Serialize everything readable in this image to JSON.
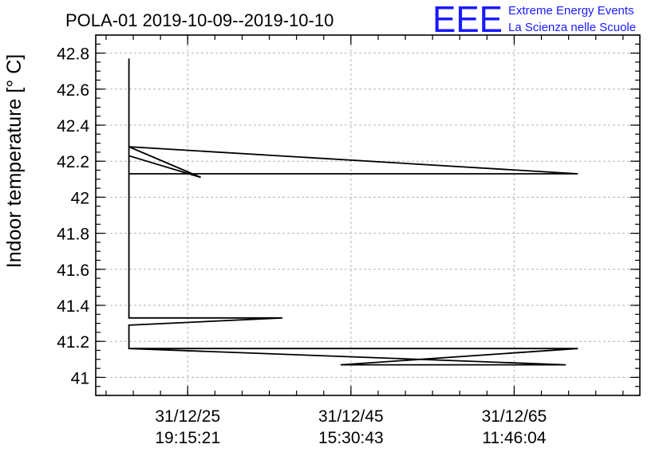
{
  "title": "POLA-01 2019-10-09--2019-10-10",
  "logo": {
    "big": "EEE",
    "line1": "Extreme Energy Events",
    "line2": "La Scienza nelle Scuole",
    "color": "#1a1aff"
  },
  "chart_data": {
    "type": "line",
    "title": "POLA-01 2019-10-09--2019-10-10",
    "xlabel": "",
    "ylabel": "Indoor temperature [° C]",
    "ylim": [
      40.9,
      42.9
    ],
    "yticks": [
      41,
      41.2,
      41.4,
      41.6,
      41.8,
      42,
      42.2,
      42.4,
      42.6,
      42.8
    ],
    "ytick_labels": [
      "41",
      "41.2",
      "41.4",
      "41.6",
      "41.8",
      "42",
      "42.2",
      "42.4",
      "42.6",
      "42.8"
    ],
    "xlim": [
      0,
      100
    ],
    "xticks": [
      {
        "x": 16.9,
        "line1": "31/12/25",
        "line2": "19:15:21"
      },
      {
        "x": 46.9,
        "line1": "31/12/45",
        "line2": "15:30:43"
      },
      {
        "x": 76.9,
        "line1": "31/12/65",
        "line2": "11:46:04"
      }
    ],
    "minor_tick_step": 5,
    "minor_tick_start": 1.9,
    "grid": true,
    "series": [
      {
        "values_x": [
          6.1,
          6.1,
          6.1,
          19.3,
          6.1,
          6.1,
          88.6,
          6.1,
          6.1,
          34.3,
          6.1,
          6.1,
          88.6,
          45.0,
          86.4,
          6.1
        ],
        "values_y": [
          42.77,
          42.28,
          42.28,
          42.11,
          42.23,
          42.13,
          42.13,
          42.28,
          41.33,
          41.33,
          41.29,
          41.16,
          41.16,
          41.07,
          41.07,
          41.16
        ],
        "color": "#000000"
      }
    ]
  }
}
